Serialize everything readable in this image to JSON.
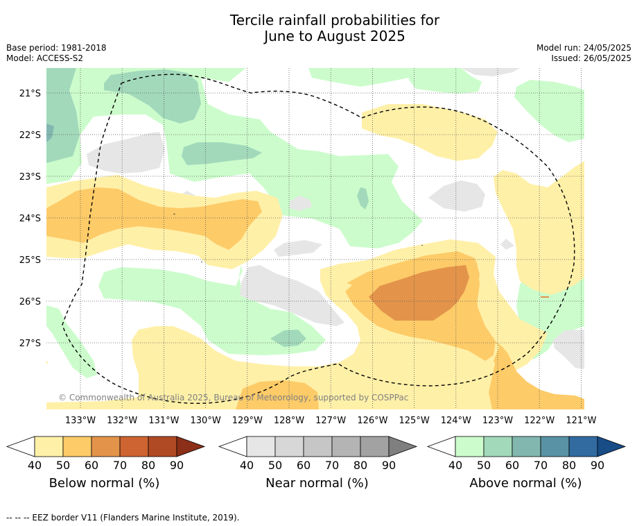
{
  "title_line1": "Tercile rainfall probabilities for",
  "title_line2": "June to August 2025",
  "meta_left": [
    "Base period: 1981-2018",
    "Model: ACCESS-S2"
  ],
  "meta_right": [
    "Model run: 24/05/2025",
    "Issued: 26/05/2025"
  ],
  "copyright": "© Commonwealth of Australia 2025, Bureau of Meteorology, supported by COSPPac",
  "lat_labels": [
    "21°S",
    "22°S",
    "23°S",
    "24°S",
    "25°S",
    "26°S",
    "27°S"
  ],
  "lon_labels": [
    "133°W",
    "132°W",
    "131°W",
    "130°W",
    "129°W",
    "128°W",
    "127°W",
    "126°W",
    "125°W",
    "124°W",
    "123°W",
    "122°W",
    "121°W"
  ],
  "colorbars": [
    {
      "name": "below",
      "label": "Below normal (%)",
      "ticks": [
        "40",
        "50",
        "60",
        "70",
        "80",
        "90"
      ],
      "colors": [
        "#fff0a8",
        "#fdcb68",
        "#e3944a",
        "#cd6431",
        "#b04a25",
        "#8b2f18"
      ]
    },
    {
      "name": "near",
      "label": "Near normal (%)",
      "ticks": [
        "40",
        "50",
        "60",
        "70",
        "80",
        "90"
      ],
      "colors": [
        "#e6e6e6",
        "#d7d7d7",
        "#c6c6c6",
        "#b4b4b4",
        "#a2a2a2",
        "#7f7f7f"
      ]
    },
    {
      "name": "above",
      "label": "Above normal (%)",
      "ticks": [
        "40",
        "50",
        "60",
        "70",
        "80",
        "90"
      ],
      "colors": [
        "#ccfccc",
        "#a2d9bb",
        "#82b7b0",
        "#5892a4",
        "#316ba0",
        "#174c86"
      ]
    }
  ],
  "footnote": "-- -- -- EEZ border V11 (Flanders Marine Institute, 2019).",
  "map_colors": {
    "below_40": "#fff0a8",
    "below_50": "#fdcb68",
    "below_60": "#e3944a",
    "near_40": "#e6e6e6",
    "above_40": "#ccfccc",
    "above_50": "#a2d9bb",
    "above_60": "#82b7b0"
  }
}
